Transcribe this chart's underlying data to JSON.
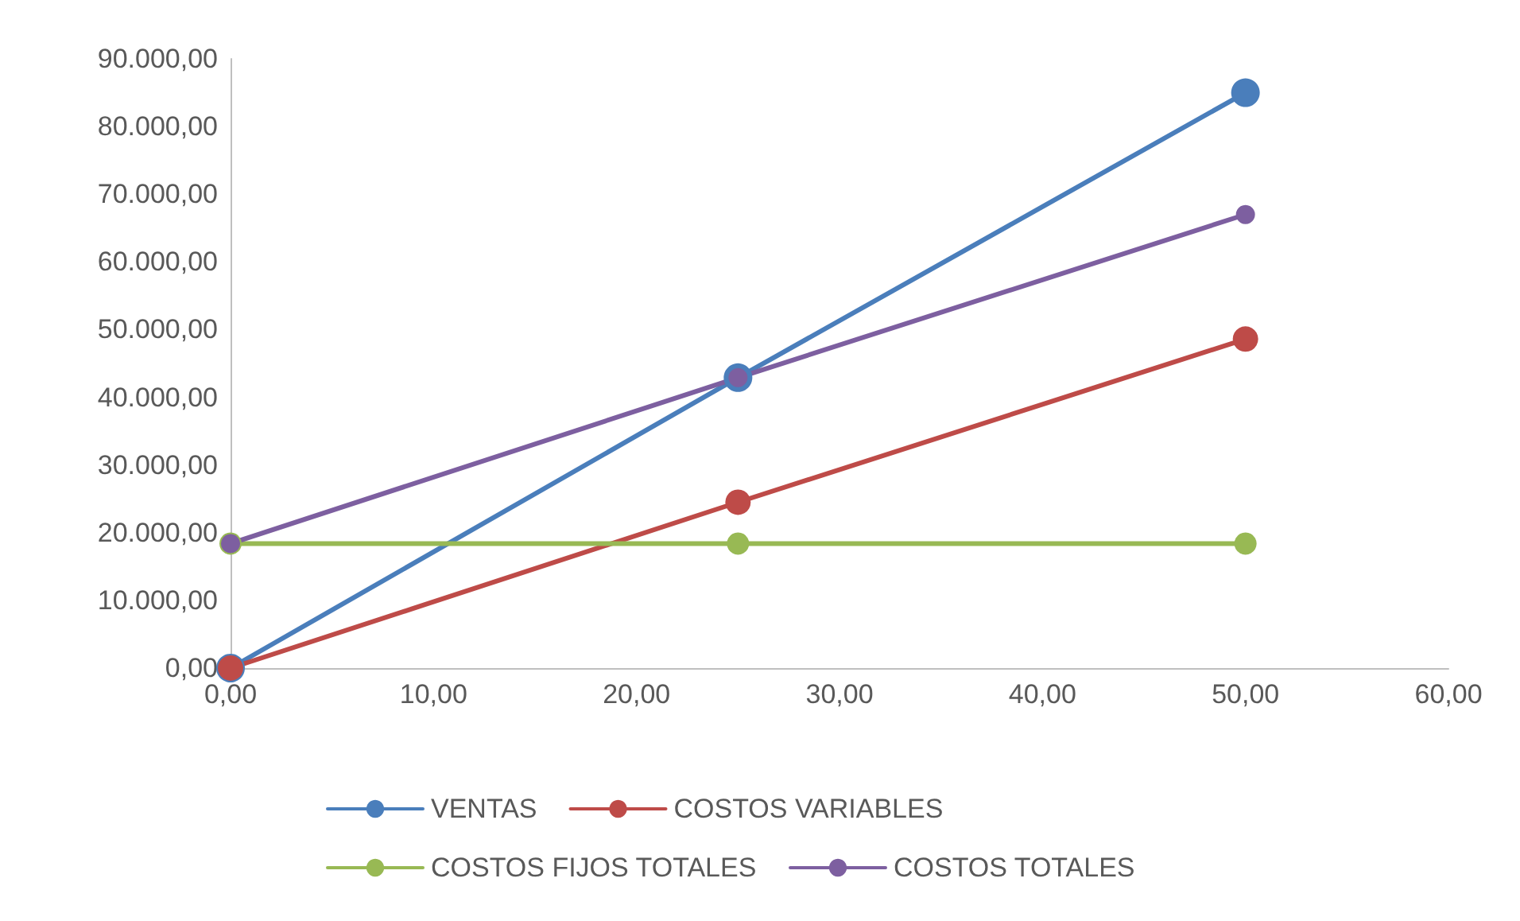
{
  "chart_data": {
    "type": "line",
    "x": [
      0,
      25,
      50
    ],
    "series": [
      {
        "name": "VENTAS",
        "color": "#4a7ebb",
        "values": [
          0,
          42900,
          85000
        ]
      },
      {
        "name": "COSTOS VARIABLES",
        "color": "#be4b48",
        "values": [
          0,
          24500,
          48600
        ]
      },
      {
        "name": "COSTOS FIJOS TOTALES",
        "color": "#98b954",
        "values": [
          18400,
          18400,
          18400
        ]
      },
      {
        "name": "COSTOS TOTALES",
        "color": "#7d5fa0",
        "values": [
          18400,
          42900,
          67000
        ]
      }
    ],
    "xlim": [
      0,
      60
    ],
    "xticks": [
      {
        "value": 0,
        "label": "0,00"
      },
      {
        "value": 10,
        "label": "10,00"
      },
      {
        "value": 20,
        "label": "20,00"
      },
      {
        "value": 30,
        "label": "30,00"
      },
      {
        "value": 40,
        "label": "40,00"
      },
      {
        "value": 50,
        "label": "50,00"
      },
      {
        "value": 60,
        "label": "60,00"
      }
    ],
    "ylim": [
      0,
      90000
    ],
    "yticks": [
      {
        "value": 0,
        "label": "0,00"
      },
      {
        "value": 10000,
        "label": "10.000,00"
      },
      {
        "value": 20000,
        "label": "20.000,00"
      },
      {
        "value": 30000,
        "label": "30.000,00"
      },
      {
        "value": 40000,
        "label": "40.000,00"
      },
      {
        "value": 50000,
        "label": "50.000,00"
      },
      {
        "value": 60000,
        "label": "60.000,00"
      },
      {
        "value": 70000,
        "label": "70.000,00"
      },
      {
        "value": 80000,
        "label": "80.000,00"
      },
      {
        "value": 90000,
        "label": "90.000,00"
      }
    ],
    "grid": false,
    "legend": "bottom",
    "marker": "circle",
    "line_style": "solid"
  }
}
